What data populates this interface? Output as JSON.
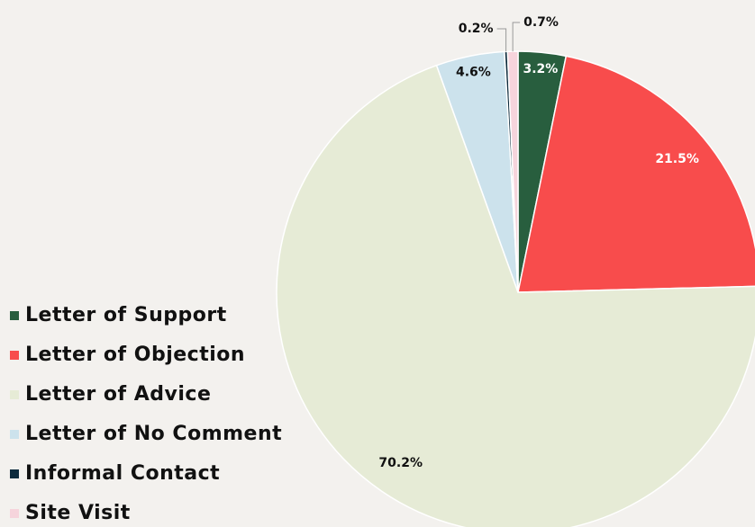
{
  "chart_data": {
    "type": "pie",
    "categories": [
      "Letter of Support",
      "Letter of Objection",
      "Letter of Advice",
      "Letter of No Comment",
      "Informal Contact",
      "Site Visit"
    ],
    "values": [
      3.2,
      21.5,
      70.2,
      4.6,
      0.2,
      0.7
    ],
    "value_labels": [
      "3.2%",
      "21.5%",
      "70.2%",
      "4.6%",
      "0.2%",
      "0.7%"
    ],
    "colors": [
      "#285e3e",
      "#f84c4c",
      "#e6ebd6",
      "#cce2ec",
      "#0d2b3d",
      "#f6d4dc"
    ],
    "legend": "left"
  }
}
